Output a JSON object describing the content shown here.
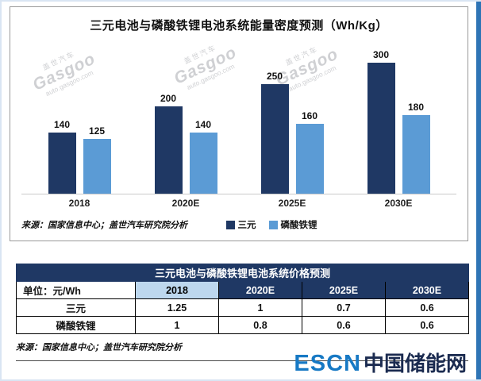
{
  "colors": {
    "series_dark": "#1f3864",
    "series_light": "#5b9bd5",
    "table_header_bg": "#1f3864",
    "col_2018_bg": "#bdd7ee",
    "right_strip": "#2e74b5",
    "escn_blue": "#1779c4",
    "escn_dark": "#1b2b50"
  },
  "watermark": {
    "cn": "盖世汽车",
    "brand": "Gasgoo",
    "sub": "auto.gasgoo.com"
  },
  "chart_data": [
    {
      "type": "bar",
      "title": "三元电池与磷酸铁锂电池系统能量密度预测（Wh/Kg）",
      "categories": [
        "2018",
        "2020E",
        "2025E",
        "2030E"
      ],
      "series": [
        {
          "name": "三元",
          "color": "#1f3864",
          "values": [
            140,
            200,
            250,
            300
          ]
        },
        {
          "name": "磷酸铁锂",
          "color": "#5b9bd5",
          "values": [
            125,
            140,
            160,
            180
          ]
        }
      ],
      "xlabel": "",
      "ylabel": "",
      "ylim": [
        0,
        300
      ],
      "grid": false,
      "value_labels": true,
      "legend_position": "bottom",
      "source": "来源：国家信息中心；盖世汽车研究院分析"
    },
    {
      "type": "table",
      "title": "三元电池与磷酸铁锂电池系统价格预测",
      "columns": [
        "单位：元/Wh",
        "2018",
        "2020E",
        "2025E",
        "2030E"
      ],
      "rows": [
        [
          "三元",
          "1.25",
          "1",
          "0.7",
          "0.6"
        ],
        [
          "磷酸铁锂",
          "1",
          "0.8",
          "0.6",
          "0.6"
        ]
      ],
      "source": "来源：国家信息中心；盖世汽车研究院分析"
    }
  ],
  "logo": {
    "escn": "ESCN",
    "cn": "中国储能网"
  }
}
